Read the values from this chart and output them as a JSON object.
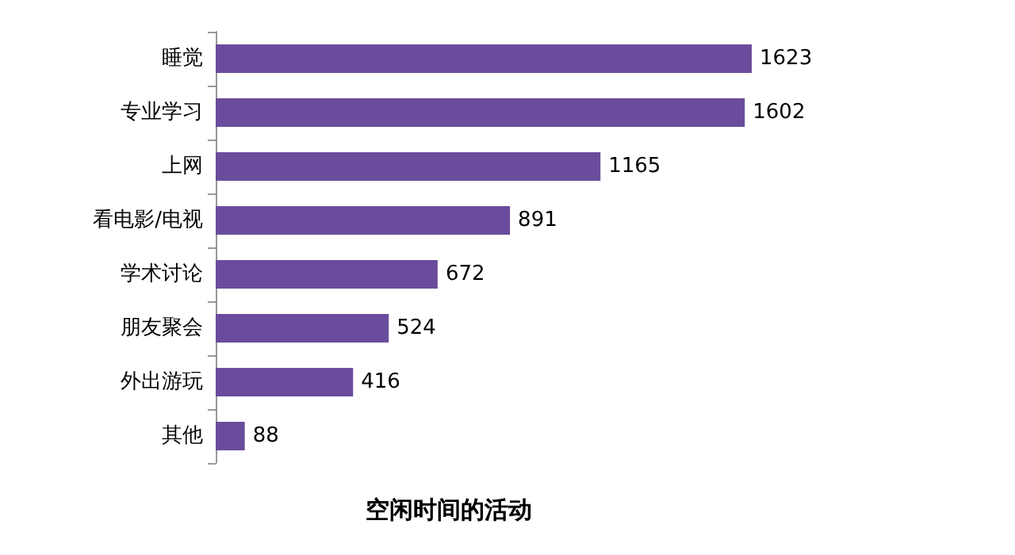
{
  "chart_data": {
    "type": "bar",
    "orientation": "horizontal",
    "title": "空闲时间的活动",
    "categories": [
      "睡觉",
      "专业学习",
      "上网",
      "看电影/电视",
      "学术讨论",
      "朋友聚会",
      "外出游玩",
      "其他"
    ],
    "values": [
      1623,
      1602,
      1165,
      891,
      672,
      524,
      416,
      88
    ],
    "color": "#6a4c9c",
    "data_labels": true
  }
}
